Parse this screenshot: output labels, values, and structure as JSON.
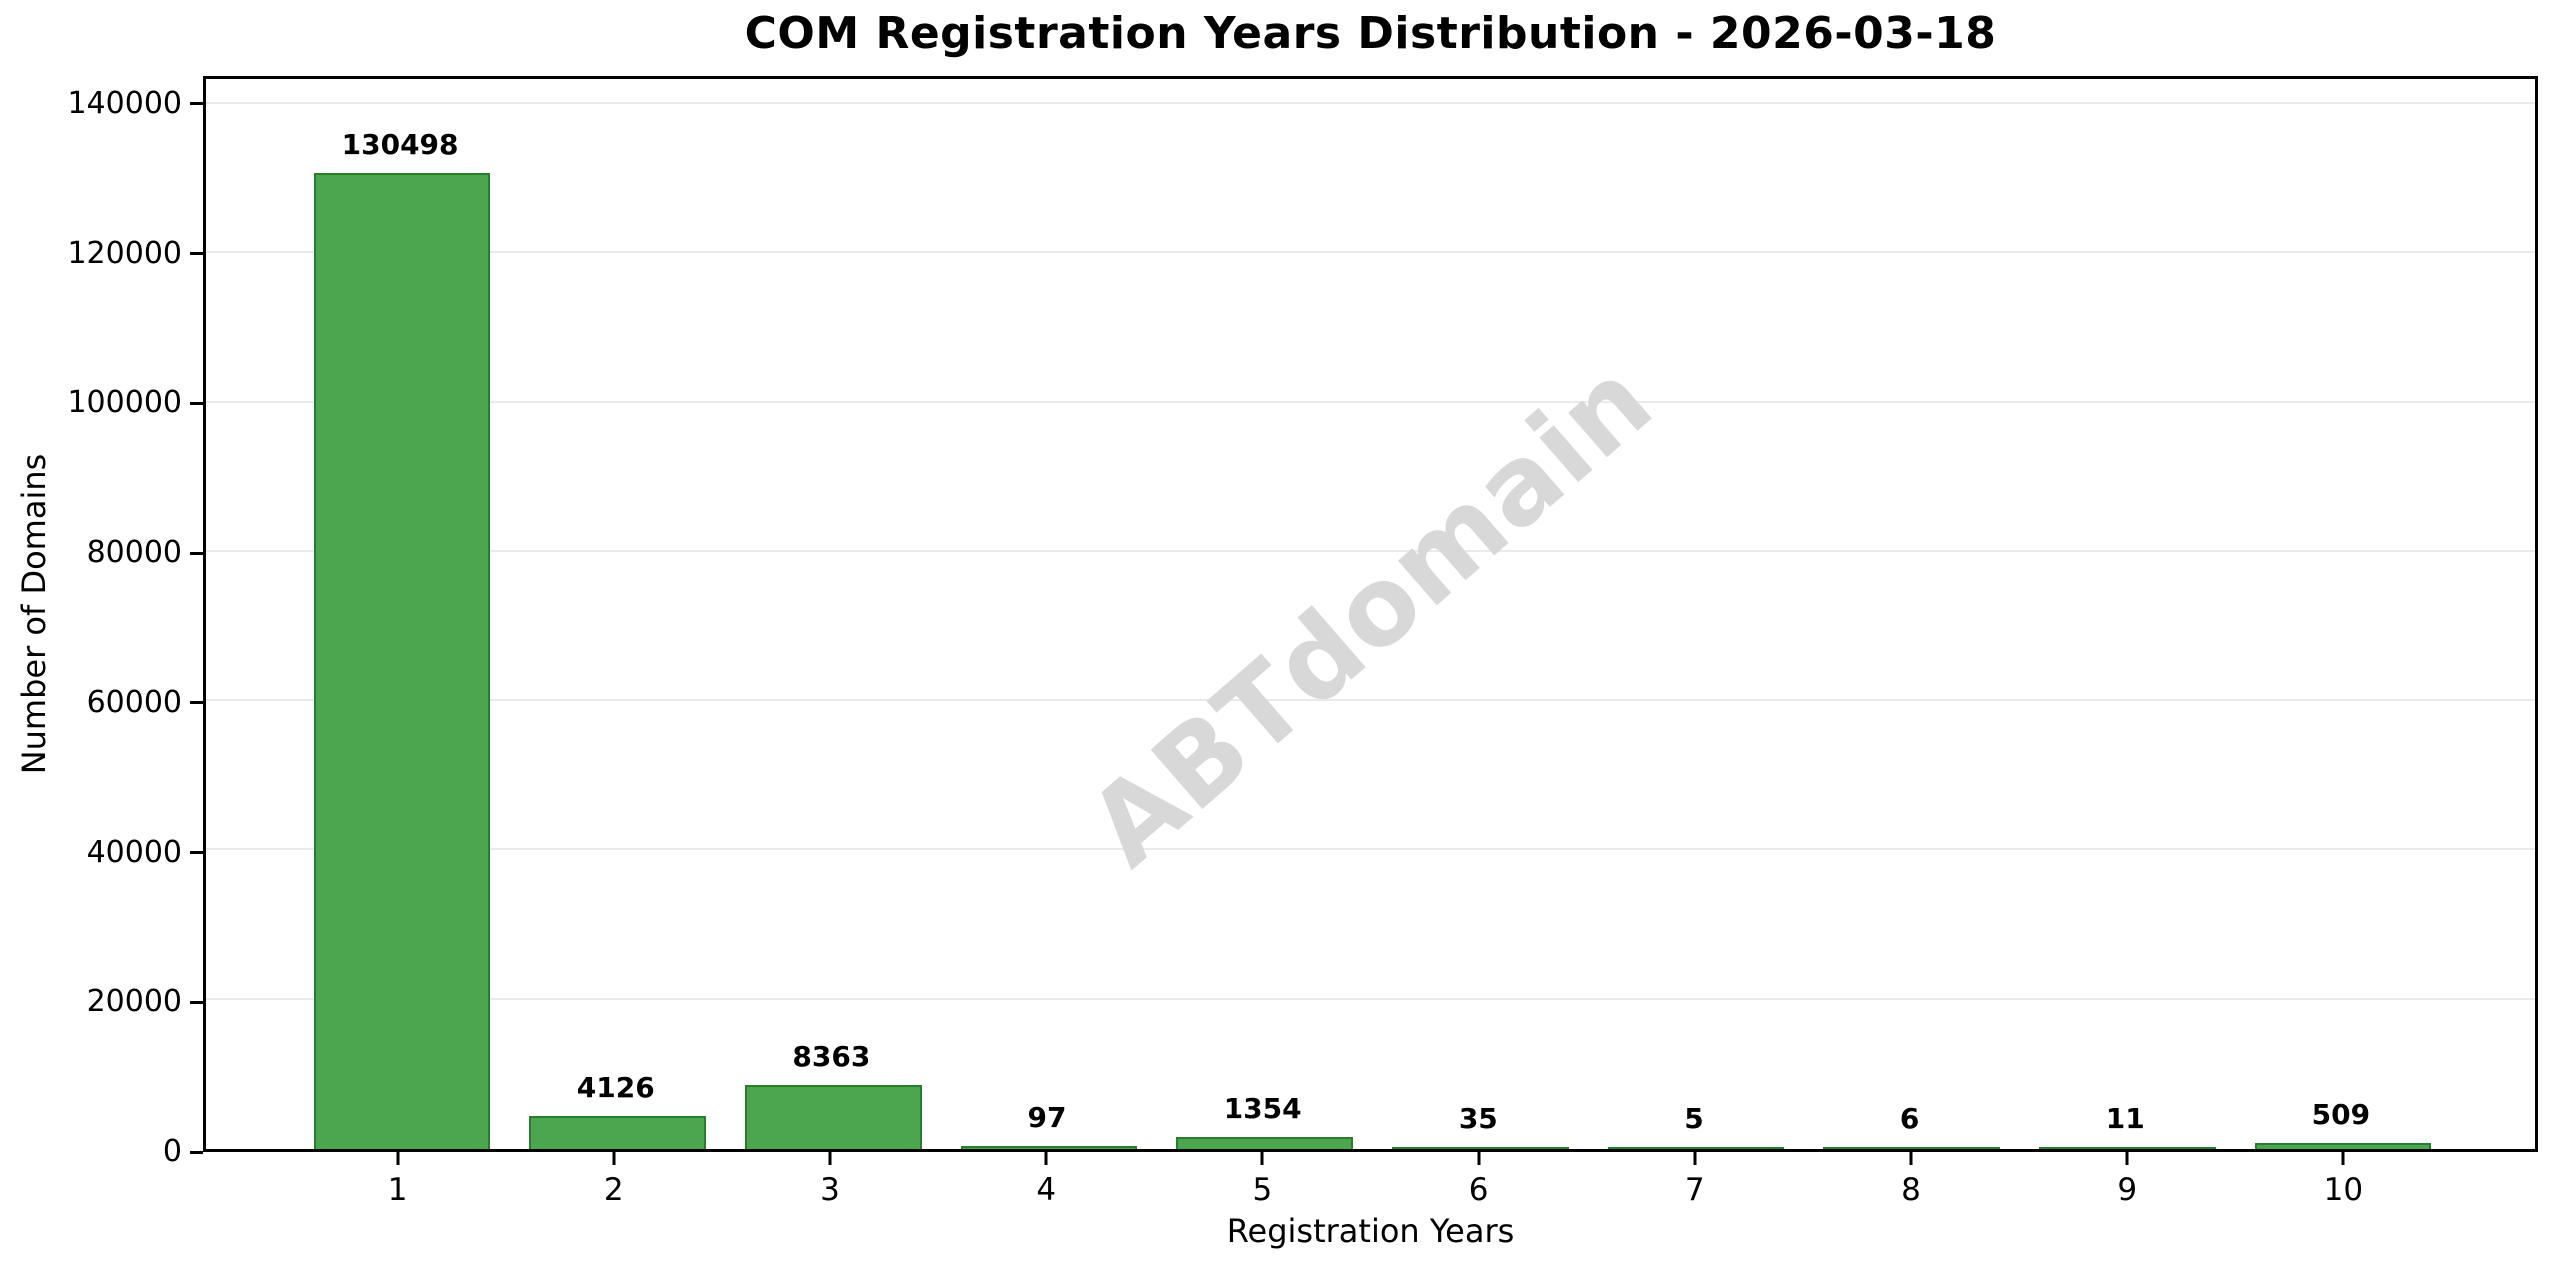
{
  "chart_data": {
    "type": "bar",
    "title": "COM Registration Years Distribution - 2026-03-18",
    "xlabel": "Registration Years",
    "ylabel": "Number of Domains",
    "categories": [
      "1",
      "2",
      "3",
      "4",
      "5",
      "6",
      "7",
      "8",
      "9",
      "10"
    ],
    "values": [
      130498,
      4126,
      8363,
      97,
      1354,
      35,
      5,
      6,
      11,
      509
    ],
    "bar_value_labels": [
      "130498",
      "4126",
      "8363",
      "97",
      "1354",
      "35",
      "5",
      "6",
      "11",
      "509"
    ],
    "yticks": [
      0,
      20000,
      40000,
      60000,
      80000,
      100000,
      120000,
      140000
    ],
    "ytick_labels": [
      "0",
      "20000",
      "40000",
      "60000",
      "80000",
      "100000",
      "120000",
      "140000"
    ],
    "ylim": [
      0,
      143333
    ],
    "xlim": [
      0.1,
      10.9
    ],
    "bar_width_data_units": 0.8,
    "grid": "horizontal-only",
    "legend": "none",
    "bar_fill_color": "#4ba64f",
    "bar_edge_color": "#2b7c2f",
    "gridline_color": "#eaeaea",
    "axis_color": "#000000",
    "background_color": "#ffffff"
  },
  "watermark": {
    "text": "ABTdomain",
    "color": "#d8d8d8",
    "rotation_deg": -41
  }
}
